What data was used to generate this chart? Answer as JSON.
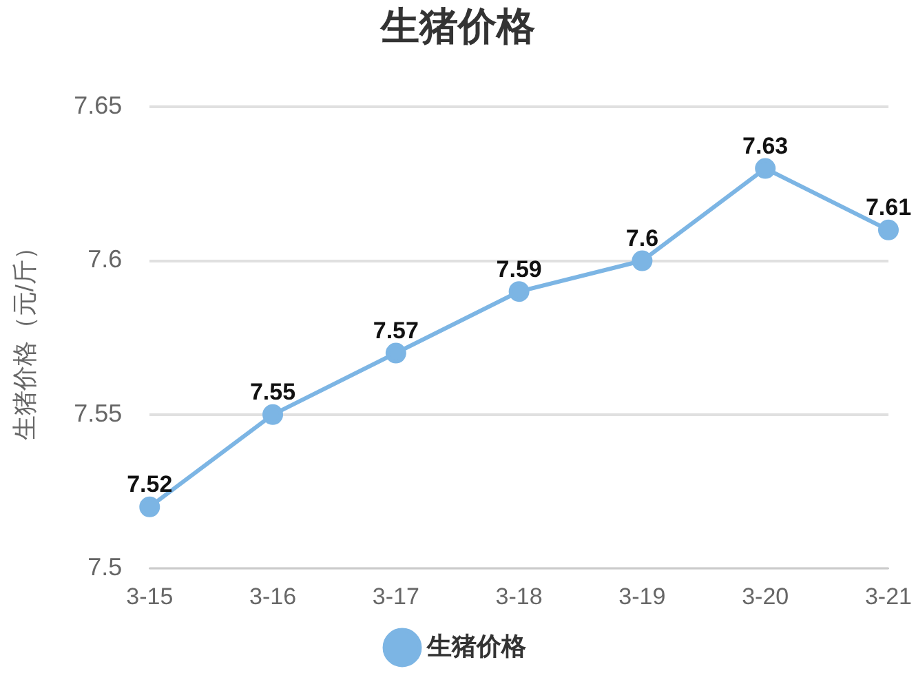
{
  "chart_data": {
    "type": "line",
    "title": "生猪价格",
    "ylabel": "生猪价格（元/斤）",
    "categories": [
      "3-15",
      "3-16",
      "3-17",
      "3-18",
      "3-19",
      "3-20",
      "3-21"
    ],
    "series": [
      {
        "name": "生猪价格",
        "color": "#7cb5e4",
        "values": [
          7.52,
          7.55,
          7.57,
          7.59,
          7.6,
          7.63,
          7.61
        ]
      }
    ],
    "ylim": [
      7.5,
      7.65
    ],
    "yticks": [
      7.5,
      7.55,
      7.6,
      7.65
    ],
    "grid": "y",
    "legend": "bottom",
    "marker": "circle",
    "line_style": "solid",
    "data_labels": true
  }
}
